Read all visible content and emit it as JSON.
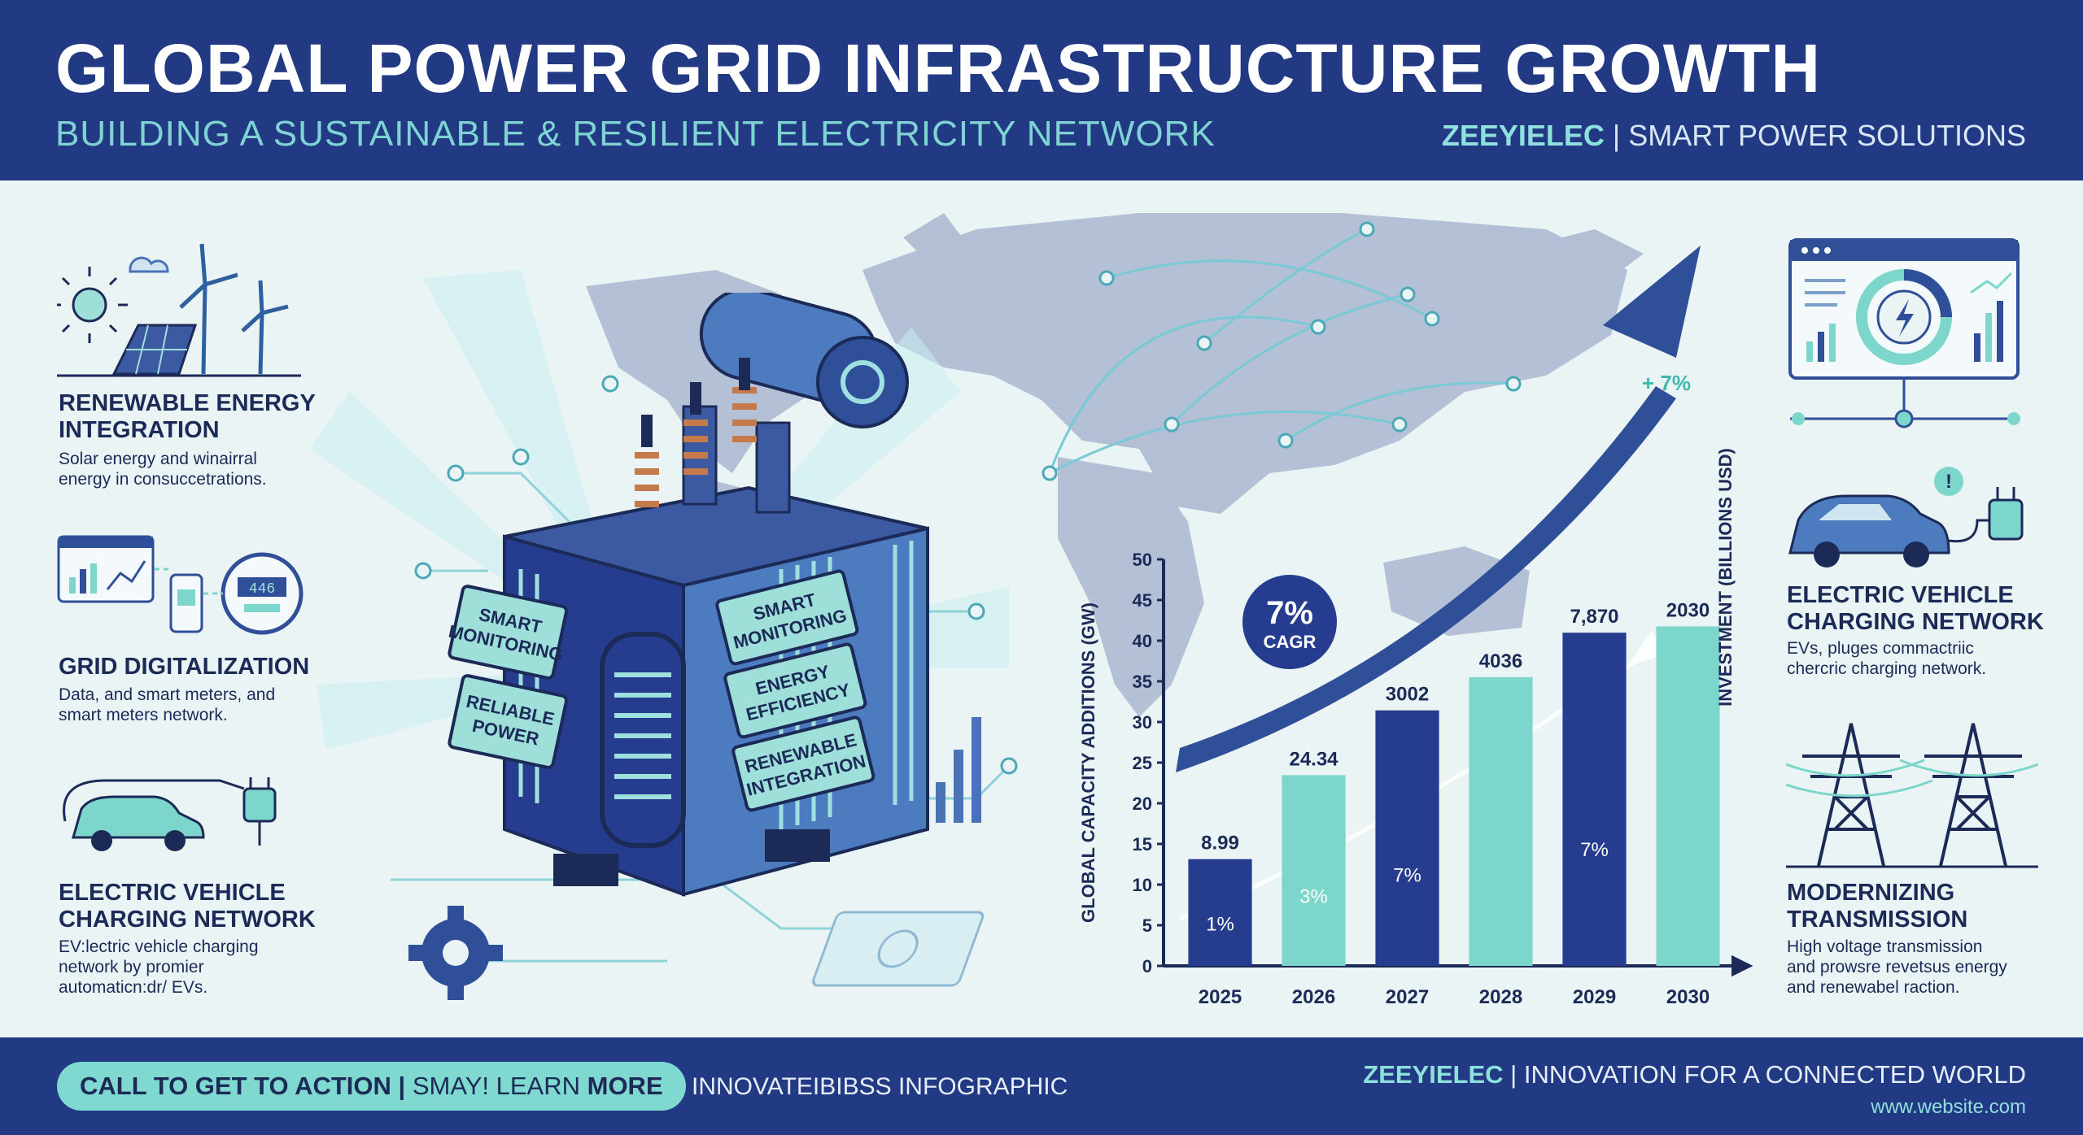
{
  "header": {
    "title": "GLOBAL POWER GRID INFRASTRUCTURE GROWTH",
    "subtitle": "BUILDING A SUSTAINABLE & RESILIENT ELECTRICITY NETWORK",
    "brand_name": "ZEEYIELEC",
    "brand_tagline": "SMART POWER SOLUTIONS"
  },
  "left_features": [
    {
      "title_line1": "RENEWABLE ENERGY",
      "title_line2": "INTEGRATION",
      "desc_line1": "Solar energy and winairral",
      "desc_line2": "energy in consuccetrations.",
      "desc_line3": ""
    },
    {
      "title_line1": "GRID DIGITALIZATION",
      "title_line2": "",
      "desc_line1": "Data, and smart meters, and",
      "desc_line2": "smart meters network.",
      "desc_line3": ""
    },
    {
      "title_line1": "ELECTRIC VEHICLE",
      "title_line2": "CHARGING NETWORK",
      "desc_line1": "EV:lectric vehicle charging",
      "desc_line2": "network by promier",
      "desc_line3": "automaticn:dr/ EVs."
    }
  ],
  "right_features": [
    {
      "title_line1": "ELECTRIC VEHICLE",
      "title_line2": "CHARGING NETWORK",
      "desc_line1": "EVs, pluges commactriic",
      "desc_line2": "chercric charging network.",
      "desc_line3": ""
    },
    {
      "title_line1": "MODERNIZING",
      "title_line2": "TRANSMISSION",
      "desc_line1": "High voltage transmission",
      "desc_line2": "and prowsre revetsus energy",
      "desc_line3": "and renewabel raction."
    }
  ],
  "transformer_labels": {
    "left_panel_1_line1": "SMART",
    "left_panel_1_line2": "MONITORING",
    "left_panel_2_line1": "RELIABLE",
    "left_panel_2_line2": "POWER",
    "right_panel_1_line1": "SMART",
    "right_panel_1_line2": "MONITORING",
    "right_panel_2_line1": "ENERGY",
    "right_panel_2_line2": "EFFICIENCY",
    "right_panel_3_line1": "RENEWABLE",
    "right_panel_3_line2": "INTEGRATION",
    "meter_display": "446"
  },
  "chart_data": {
    "type": "bar",
    "categories": [
      "2025",
      "2026",
      "2027",
      "2028",
      "2029",
      "2030"
    ],
    "value_labels": [
      "8.99",
      "24.34",
      "3002",
      "4036",
      "7,870",
      "2030"
    ],
    "inner_labels": [
      "1%",
      "3%",
      "7%",
      "",
      "7%",
      ""
    ],
    "bar_colors": [
      "#263d8f",
      "#7dd6cc",
      "#263d8f",
      "#7dd6cc",
      "#263d8f",
      "#7dd6cc"
    ],
    "bar_heights_fraction": [
      0.305,
      0.545,
      0.73,
      0.825,
      0.952,
      0.97
    ],
    "ylabel": "GLOBAL CAPACITY ADDITIONS (GW)",
    "y2label": "INVESTMENT (BILLIONS USD)",
    "yticks": [
      "0",
      "5",
      "10",
      "15",
      "20",
      "25",
      "30",
      "35",
      "40",
      "45",
      "50"
    ],
    "ylim": [
      0,
      50
    ],
    "cagr_value": "7%",
    "cagr_label": "CAGR",
    "top_annotation": "+ 7%",
    "grid": false
  },
  "footer": {
    "cta_part1": "CALL TO GET TO ACTION",
    "cta_part2": "SMAY! LEARN",
    "cta_part3": "MORE",
    "note": "INNOVATEIBIBSS INFOGRAPHIC",
    "brand_name": "ZEEYIELEC",
    "brand_tagline": "INNOVATION FOR A CONNECTED WORLD",
    "url": "www.website.com"
  },
  "colors": {
    "navy": "#223a84",
    "teal": "#7dd6cc",
    "light_bg": "#eaf4f5"
  }
}
